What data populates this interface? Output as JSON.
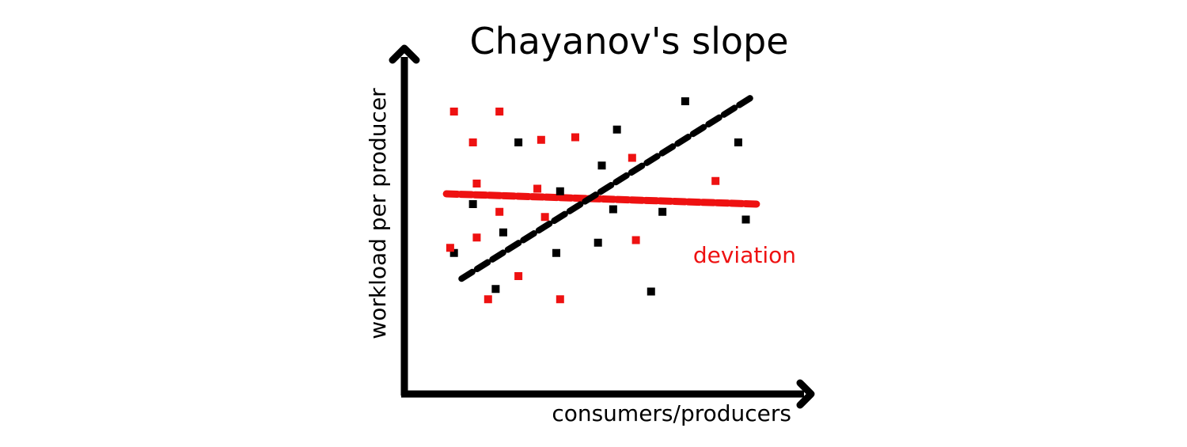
{
  "chart_data": {
    "type": "scatter",
    "title": "Chayanov's slope",
    "xlabel": "consumers/producers",
    "ylabel": "workload per producer",
    "annotation": "deviation",
    "grid": false,
    "xlim": [
      0,
      100
    ],
    "ylim": [
      0,
      100
    ],
    "colors": {
      "primary": "#000000",
      "secondary": "#ee1111"
    },
    "series": [
      {
        "color": "#000000",
        "points": [
          {
            "x": 11,
            "y": 37
          },
          {
            "x": 16,
            "y": 56
          },
          {
            "x": 22,
            "y": 23
          },
          {
            "x": 24,
            "y": 45
          },
          {
            "x": 28,
            "y": 80
          },
          {
            "x": 38,
            "y": 37
          },
          {
            "x": 39,
            "y": 61
          },
          {
            "x": 49,
            "y": 41
          },
          {
            "x": 50,
            "y": 71
          },
          {
            "x": 53,
            "y": 54
          },
          {
            "x": 54,
            "y": 85
          },
          {
            "x": 63,
            "y": 22
          },
          {
            "x": 66,
            "y": 53
          },
          {
            "x": 72,
            "y": 96
          },
          {
            "x": 86,
            "y": 80
          },
          {
            "x": 88,
            "y": 50
          }
        ],
        "trend": {
          "x": [
            13,
            90
          ],
          "y": [
            27,
            98
          ]
        }
      },
      {
        "color": "#ee1111",
        "points": [
          {
            "x": 10,
            "y": 39
          },
          {
            "x": 11,
            "y": 92
          },
          {
            "x": 16,
            "y": 80
          },
          {
            "x": 17,
            "y": 64
          },
          {
            "x": 17,
            "y": 43
          },
          {
            "x": 20,
            "y": 19
          },
          {
            "x": 23,
            "y": 92
          },
          {
            "x": 23,
            "y": 53
          },
          {
            "x": 28,
            "y": 28
          },
          {
            "x": 33,
            "y": 62
          },
          {
            "x": 34,
            "y": 81
          },
          {
            "x": 35,
            "y": 51
          },
          {
            "x": 39,
            "y": 19
          },
          {
            "x": 43,
            "y": 82
          },
          {
            "x": 58,
            "y": 74
          },
          {
            "x": 59,
            "y": 42
          },
          {
            "x": 80,
            "y": 65
          }
        ],
        "trend": {
          "x": [
            9,
            91
          ],
          "y": [
            60,
            56
          ]
        }
      }
    ]
  }
}
